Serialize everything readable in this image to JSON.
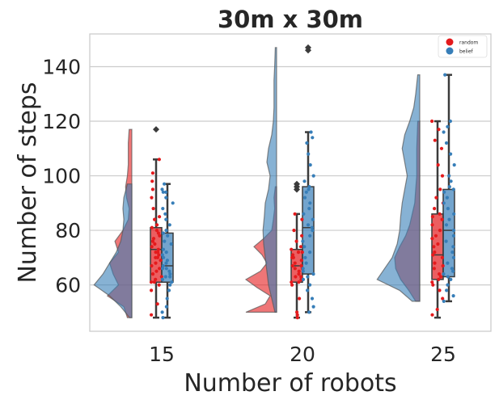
{
  "chart_data": {
    "type": "raincloud",
    "title": "30m x 30m",
    "xlabel": "Number of robots",
    "ylabel": "Number of steps",
    "categories": [
      "15",
      "20",
      "25"
    ],
    "ylim": [
      43,
      152
    ],
    "yticks": [
      60,
      80,
      100,
      120,
      140
    ],
    "grid": true,
    "legend_position": "top-right",
    "series": [
      {
        "name": "random",
        "color": "#e41a1c",
        "groups": [
          {
            "category": "15",
            "box": {
              "whisker_low": 48,
              "q1": 61,
              "median": 73,
              "q3": 81,
              "whisker_high": 106
            },
            "outliers": [
              117
            ],
            "density": {
              "y": [
                48,
                52,
                56,
                60,
                64,
                68,
                72,
                76,
                80,
                84,
                88,
                92,
                96,
                100,
                104,
                108,
                112,
                117
              ],
              "w": [
                0.1,
                0.18,
                0.55,
                0.3,
                0.42,
                0.5,
                0.3,
                0.38,
                0.2,
                0.08,
                0.06,
                0.12,
                0.14,
                0.1,
                0.08,
                0.08,
                0.08,
                0.06
              ]
            },
            "points": [
              49,
              53,
              58,
              60,
              61,
              61,
              62,
              63,
              64,
              65,
              66,
              67,
              68,
              69,
              70,
              70,
              71,
              72,
              72,
              73,
              74,
              75,
              76,
              77,
              78,
              79,
              80,
              81,
              82,
              84,
              85,
              88,
              92,
              95,
              98,
              101,
              106
            ]
          },
          {
            "category": "20",
            "box": {
              "whisker_low": 48,
              "q1": 61,
              "median": 67,
              "q3": 73,
              "whisker_high": 86
            },
            "outliers": [
              95,
              96,
              97
            ],
            "density": {
              "y": [
                50,
                53,
                56,
                59,
                62,
                65,
                68,
                71,
                74,
                77,
                80,
                84,
                88,
                92,
                96
              ],
              "w": [
                0.95,
                0.35,
                0.2,
                0.6,
                0.95,
                0.5,
                0.3,
                0.45,
                0.7,
                0.4,
                0.15,
                0.1,
                0.06,
                0.08,
                0.04
              ]
            },
            "points": [
              48,
              49,
              50,
              55,
              60,
              61,
              61,
              62,
              62,
              63,
              63,
              64,
              65,
              66,
              66,
              67,
              67,
              68,
              69,
              70,
              70,
              71,
              72,
              72,
              73,
              74,
              76,
              78,
              80,
              84,
              86
            ]
          },
          {
            "category": "25",
            "box": {
              "whisker_low": 48,
              "q1": 62,
              "median": 71,
              "q3": 86,
              "whisker_high": 120
            },
            "outliers": [],
            "density": {
              "y": [
                54,
                58,
                62,
                66,
                70,
                74,
                78,
                82,
                86,
                90,
                95,
                100,
                105,
                110,
                115,
                120
              ],
              "w": [
                0.08,
                0.22,
                0.38,
                0.48,
                0.5,
                0.4,
                0.28,
                0.2,
                0.15,
                0.1,
                0.08,
                0.06,
                0.06,
                0.06,
                0.05,
                0.04
              ]
            },
            "points": [
              49,
              51,
              55,
              58,
              60,
              61,
              62,
              63,
              64,
              66,
              67,
              68,
              70,
              71,
              72,
              74,
              75,
              77,
              78,
              80,
              82,
              84,
              85,
              86,
              88,
              90,
              92,
              95,
              100,
              104,
              110,
              113,
              117,
              120
            ]
          }
        ]
      },
      {
        "name": "belief",
        "color": "#377eb8",
        "groups": [
          {
            "category": "15",
            "box": {
              "whisker_low": 48,
              "q1": 61,
              "median": 67,
              "q3": 79,
              "whisker_high": 97
            },
            "outliers": [],
            "density": {
              "y": [
                48,
                52,
                56,
                60,
                64,
                68,
                72,
                76,
                80,
                84,
                88,
                92,
                97
              ],
              "w": [
                0.05,
                0.25,
                0.5,
                0.85,
                0.65,
                0.5,
                0.35,
                0.25,
                0.2,
                0.18,
                0.2,
                0.18,
                0.1
              ]
            },
            "points": [
              48,
              50,
              52,
              55,
              58,
              60,
              61,
              62,
              63,
              63,
              64,
              65,
              66,
              66,
              67,
              68,
              69,
              70,
              71,
              72,
              73,
              75,
              76,
              78,
              79,
              80,
              82,
              84,
              86,
              88,
              90,
              92,
              94,
              94,
              95,
              97
            ]
          },
          {
            "category": "20",
            "box": {
              "whisker_low": 50,
              "q1": 64,
              "median": 81,
              "q3": 96,
              "whisker_high": 116
            },
            "outliers": [
              146,
              147
            ],
            "density": {
              "y": [
                50,
                55,
                60,
                65,
                70,
                75,
                80,
                85,
                90,
                95,
                100,
                105,
                110,
                115,
                120,
                125,
                130,
                135,
                140,
                147
              ],
              "w": [
                0.05,
                0.15,
                0.25,
                0.3,
                0.35,
                0.4,
                0.42,
                0.38,
                0.35,
                0.25,
                0.2,
                0.3,
                0.25,
                0.15,
                0.1,
                0.08,
                0.08,
                0.08,
                0.06,
                0.04
              ]
            },
            "points": [
              50,
              52,
              55,
              58,
              60,
              62,
              63,
              64,
              65,
              66,
              68,
              70,
              72,
              74,
              76,
              78,
              80,
              81,
              82,
              84,
              86,
              88,
              90,
              92,
              94,
              95,
              96,
              98,
              100,
              104,
              108,
              112,
              114,
              116
            ]
          },
          {
            "category": "25",
            "box": {
              "whisker_low": 54,
              "q1": 63,
              "median": 80,
              "q3": 95,
              "whisker_high": 137
            },
            "outliers": [],
            "density": {
              "y": [
                54,
                58,
                62,
                66,
                70,
                75,
                80,
                85,
                90,
                95,
                100,
                105,
                110,
                115,
                120,
                125,
                130,
                137
              ],
              "w": [
                0.15,
                0.4,
                0.85,
                0.7,
                0.55,
                0.45,
                0.4,
                0.38,
                0.35,
                0.3,
                0.25,
                0.3,
                0.35,
                0.3,
                0.2,
                0.12,
                0.08,
                0.04
              ]
            },
            "points": [
              54,
              56,
              58,
              60,
              62,
              63,
              64,
              65,
              66,
              68,
              70,
              72,
              74,
              76,
              78,
              80,
              82,
              84,
              86,
              88,
              90,
              92,
              94,
              95,
              96,
              98,
              100,
              104,
              108,
              112,
              116,
              118,
              120,
              137
            ]
          }
        ]
      }
    ]
  }
}
